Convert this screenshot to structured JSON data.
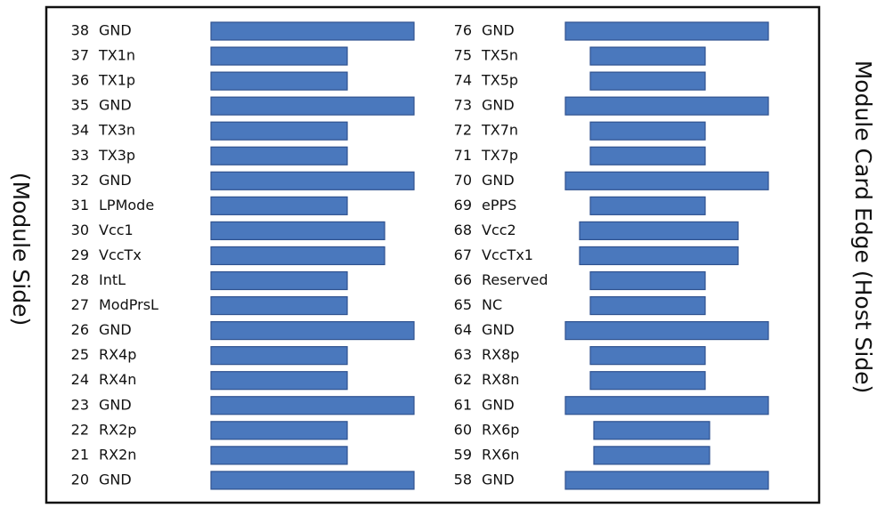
{
  "left_label": "(Module Side)",
  "right_label": "Module Card Edge (Host Side)",
  "left_pins": [
    {
      "number": 38,
      "name": "GND"
    },
    {
      "number": 37,
      "name": "TX1n"
    },
    {
      "number": 36,
      "name": "TX1p"
    },
    {
      "number": 35,
      "name": "GND"
    },
    {
      "number": 34,
      "name": "TX3n"
    },
    {
      "number": 33,
      "name": "TX3p"
    },
    {
      "number": 32,
      "name": "GND"
    },
    {
      "number": 31,
      "name": "LPMode"
    },
    {
      "number": 30,
      "name": "Vcc1"
    },
    {
      "number": 29,
      "name": "VccTx"
    },
    {
      "number": 28,
      "name": "IntL"
    },
    {
      "number": 27,
      "name": "ModPrsL"
    },
    {
      "number": 26,
      "name": "GND"
    },
    {
      "number": 25,
      "name": "RX4p"
    },
    {
      "number": 24,
      "name": "RX4n"
    },
    {
      "number": 23,
      "name": "GND"
    },
    {
      "number": 22,
      "name": "RX2p"
    },
    {
      "number": 21,
      "name": "RX2n"
    },
    {
      "number": 20,
      "name": "GND"
    }
  ],
  "right_pins": [
    {
      "number": 76,
      "name": "GND"
    },
    {
      "number": 75,
      "name": "TX5n"
    },
    {
      "number": 74,
      "name": "TX5p"
    },
    {
      "number": 73,
      "name": "GND"
    },
    {
      "number": 72,
      "name": "TX7n"
    },
    {
      "number": 71,
      "name": "TX7p"
    },
    {
      "number": 70,
      "name": "GND"
    },
    {
      "number": 69,
      "name": "ePPS"
    },
    {
      "number": 68,
      "name": "Vcc2"
    },
    {
      "number": 67,
      "name": "VccTx1"
    },
    {
      "number": 66,
      "name": "Reserved"
    },
    {
      "number": 65,
      "name": "NC"
    },
    {
      "number": 64,
      "name": "GND"
    },
    {
      "number": 63,
      "name": "RX8p"
    },
    {
      "number": 62,
      "name": "RX8n"
    },
    {
      "number": 61,
      "name": "GND"
    },
    {
      "number": 60,
      "name": "RX6p"
    },
    {
      "number": 59,
      "name": "RX6n"
    },
    {
      "number": 58,
      "name": "GND"
    }
  ]
}
